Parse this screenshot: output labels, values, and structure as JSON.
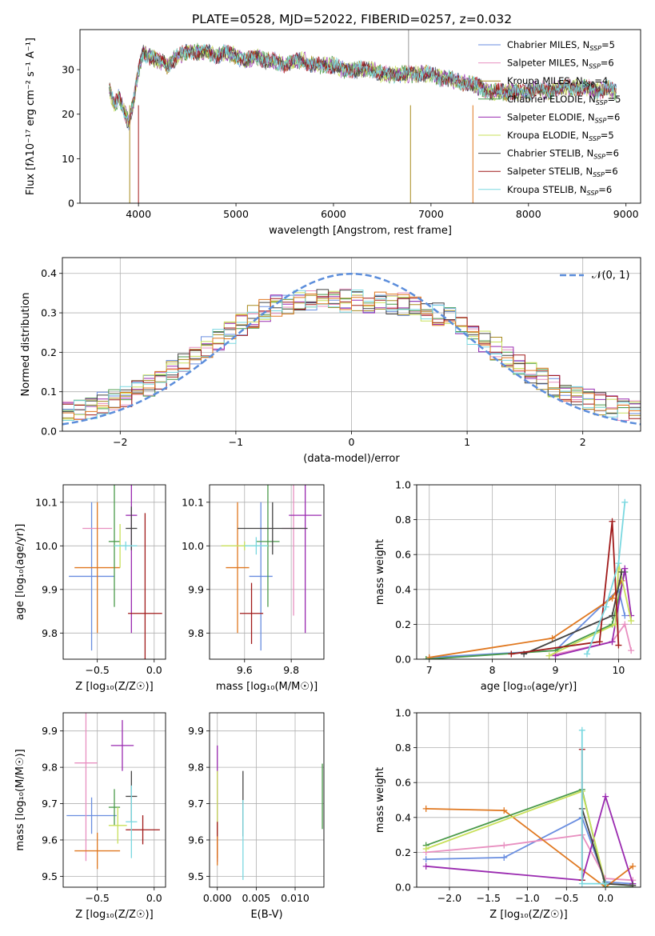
{
  "title": "PLATE=0528, MJD=52022, FIBERID=0257, z=0.032",
  "colors": {
    "chabrier_miles": "#6a8ee0",
    "salpeter_miles": "#e88fc0",
    "kroupa_miles": "#a88b1e",
    "chabrier_elodie": "#4a9a4a",
    "salpeter_elodie": "#9a2ab0",
    "kroupa_elodie": "#c8e05a",
    "chabrier_stelib": "#444444",
    "salpeter_stelib": "#a01a1a",
    "kroupa_stelib": "#7ad8e0",
    "gaussian": "#5b8ddb",
    "extra_orange": "#e07820"
  },
  "chart_data": [
    {
      "type": "line",
      "xlabel": "wavelength [Angstrom, rest frame]",
      "ylabel": "Flux [fλ10⁻¹⁷ erg cm⁻² s⁻¹ A⁻¹]",
      "xlim": [
        3400,
        9150
      ],
      "ylim": [
        0,
        39
      ],
      "xticks": [
        "4000",
        "5000",
        "6000",
        "7000",
        "8000",
        "9000"
      ],
      "yticks": [
        "0",
        "10",
        "20",
        "30"
      ],
      "legend_placement": "top-right",
      "legend": [
        {
          "label": "Chabrier MILES, N",
          "sub": "SSP",
          "val": "=5",
          "color_key": "chabrier_miles"
        },
        {
          "label": "Salpeter MILES, N",
          "sub": "SSP",
          "val": "=6",
          "color_key": "salpeter_miles"
        },
        {
          "label": "Kroupa MILES, N",
          "sub": "SSP",
          "val": "=4",
          "color_key": "kroupa_miles"
        },
        {
          "label": "Chabrier ELODIE, N",
          "sub": "SSP",
          "val": "=5",
          "color_key": "chabrier_elodie"
        },
        {
          "label": "Salpeter ELODIE, N",
          "sub": "SSP",
          "val": "=6",
          "color_key": "salpeter_elodie"
        },
        {
          "label": "Kroupa ELODIE, N",
          "sub": "SSP",
          "val": "=5",
          "color_key": "kroupa_elodie"
        },
        {
          "label": "Chabrier STELIB, N",
          "sub": "SSP",
          "val": "=6",
          "color_key": "chabrier_stelib"
        },
        {
          "label": "Salpeter STELIB, N",
          "sub": "SSP",
          "val": "=6",
          "color_key": "salpeter_stelib"
        },
        {
          "label": "Kroupa STELIB, N",
          "sub": "SSP",
          "val": "=6",
          "color_key": "kroupa_stelib"
        }
      ],
      "spectrum": {
        "x": [
          3700,
          3750,
          3800,
          3850,
          3900,
          3950,
          4000,
          4050,
          4100,
          4200,
          4300,
          4400,
          4500,
          4600,
          4700,
          4800,
          4900,
          5000,
          5100,
          5200,
          5300,
          5400,
          5500,
          5600,
          5700,
          5800,
          5900,
          6000,
          6100,
          6200,
          6300,
          6400,
          6500,
          6600,
          6700,
          6800,
          6900,
          7000,
          7100,
          7200,
          7300,
          7400,
          7500,
          7600,
          7700,
          7800,
          7900,
          8000,
          8100,
          8200,
          8300,
          8400,
          8500,
          8600,
          8700,
          8800,
          8900
        ],
        "y": [
          26,
          22,
          24,
          21,
          18,
          23,
          30,
          34,
          33,
          32,
          31,
          33,
          34,
          34,
          34,
          33,
          34,
          33,
          32,
          33,
          32,
          32,
          31,
          32,
          32,
          31,
          31,
          31,
          30,
          30,
          30,
          30,
          29,
          29,
          29,
          29,
          29,
          29,
          28,
          28,
          27,
          27,
          26,
          25,
          25,
          25,
          25,
          25,
          26,
          25,
          26,
          26,
          26,
          26,
          25,
          26,
          25
        ]
      }
    },
    {
      "type": "bar",
      "xlabel": "(data-model)/error",
      "ylabel": "Normed distribution",
      "xlim": [
        -2.5,
        2.5
      ],
      "ylim": [
        0,
        0.44
      ],
      "xticks": [
        "−2",
        "−1",
        "0",
        "1",
        "2"
      ],
      "yticks": [
        "0.0",
        "0.1",
        "0.2",
        "0.3",
        "0.4"
      ],
      "legend_label": "𝒩(0, 1)",
      "legend_placement": "top-right",
      "bin_width": 0.1
    },
    {
      "type": "scatter",
      "xlabel": "Z [log₁₀(Z/Z☉)]",
      "ylabel": "age  [log₁₀(age/yr)]",
      "xlim": [
        -0.8,
        0.1
      ],
      "ylim": [
        9.74,
        10.14
      ],
      "xticks": [
        "−0.5",
        "0.0"
      ],
      "yticks": [
        "9.8",
        "9.9",
        "10.0",
        "10.1"
      ],
      "points": [
        {
          "x": -0.55,
          "y": 9.93,
          "xerr": 0.2,
          "yerr": 0.17,
          "c": "chabrier_miles"
        },
        {
          "x": -0.5,
          "y": 10.04,
          "xerr": 0.13,
          "yerr": 0.0,
          "c": "salpeter_miles"
        },
        {
          "x": -0.5,
          "y": 9.95,
          "xerr": 0.2,
          "yerr": 0.15,
          "c": "extra_orange"
        },
        {
          "x": -0.35,
          "y": 10.01,
          "xerr": 0.05,
          "yerr": 0.15,
          "c": "chabrier_elodie"
        },
        {
          "x": -0.2,
          "y": 10.07,
          "xerr": 0.05,
          "yerr": 0.27,
          "c": "salpeter_elodie"
        },
        {
          "x": -0.3,
          "y": 10.0,
          "xerr": 0.05,
          "yerr": 0.05,
          "c": "kroupa_elodie"
        },
        {
          "x": -0.2,
          "y": 10.04,
          "xerr": 0.05,
          "yerr": 0.05,
          "c": "chabrier_stelib"
        },
        {
          "x": -0.08,
          "y": 9.845,
          "xerr": 0.15,
          "yerr": 0.23,
          "c": "salpeter_stelib"
        },
        {
          "x": -0.25,
          "y": 10.0,
          "xerr": 0.1,
          "yerr": 0.01,
          "c": "kroupa_stelib"
        }
      ]
    },
    {
      "type": "scatter",
      "xlabel": "mass [log₁₀(M/M☉)]",
      "ylabel": "",
      "xlim": [
        9.45,
        9.94
      ],
      "ylim": [
        9.74,
        10.14
      ],
      "xticks": [
        "9.6",
        "9.8"
      ],
      "yticks": [
        "9.8",
        "9.9",
        "10.0",
        "10.1"
      ],
      "points": [
        {
          "x": 9.67,
          "y": 9.93,
          "xerr": 0.05,
          "yerr": 0.17,
          "c": "chabrier_miles"
        },
        {
          "x": 9.81,
          "y": 10.04,
          "xerr": 0.05,
          "yerr": 0.2,
          "c": "salpeter_miles"
        },
        {
          "x": 9.57,
          "y": 9.95,
          "xerr": 0.05,
          "yerr": 0.15,
          "c": "extra_orange"
        },
        {
          "x": 9.7,
          "y": 10.01,
          "xerr": 0.05,
          "yerr": 0.15,
          "c": "chabrier_elodie"
        },
        {
          "x": 9.86,
          "y": 10.07,
          "xerr": 0.07,
          "yerr": 0.27,
          "c": "salpeter_elodie"
        },
        {
          "x": 9.6,
          "y": 10.0,
          "xerr": 0.1,
          "yerr": 0.01,
          "c": "kroupa_elodie"
        },
        {
          "x": 9.72,
          "y": 10.04,
          "xerr": 0.15,
          "yerr": 0.06,
          "c": "chabrier_stelib"
        },
        {
          "x": 9.63,
          "y": 9.845,
          "xerr": 0.05,
          "yerr": 0.07,
          "c": "salpeter_stelib"
        },
        {
          "x": 9.65,
          "y": 10.0,
          "xerr": 0.05,
          "yerr": 0.02,
          "c": "kroupa_stelib"
        }
      ]
    },
    {
      "type": "line",
      "xlabel": "age  [log₁₀(age/yr)]",
      "ylabel": "mass weight",
      "xlim": [
        6.8,
        10.35
      ],
      "ylim": [
        0,
        1
      ],
      "xticks": [
        "7",
        "8",
        "9",
        "10"
      ],
      "yticks": [
        "0.0",
        "0.2",
        "0.4",
        "0.6",
        "0.8",
        "1.0"
      ],
      "series": [
        {
          "c": "chabrier_miles",
          "x": [
            7.0,
            9.0,
            10.0,
            10.1
          ],
          "y": [
            0.01,
            0.05,
            0.4,
            0.25
          ]
        },
        {
          "c": "salpeter_miles",
          "x": [
            8.9,
            9.9,
            10.1,
            10.2
          ],
          "y": [
            0.02,
            0.1,
            0.2,
            0.05
          ]
        },
        {
          "c": "extra_orange",
          "x": [
            7.0,
            8.95,
            9.9,
            10.05
          ],
          "y": [
            0.01,
            0.12,
            0.35,
            0.45
          ]
        },
        {
          "c": "chabrier_elodie",
          "x": [
            6.95,
            9.0,
            9.9,
            10.1
          ],
          "y": [
            0.0,
            0.05,
            0.2,
            0.5
          ]
        },
        {
          "c": "salpeter_elodie",
          "x": [
            9.0,
            9.9,
            10.1,
            10.2
          ],
          "y": [
            0.02,
            0.1,
            0.52,
            0.25
          ]
        },
        {
          "c": "kroupa_elodie",
          "x": [
            8.9,
            9.95,
            10.0,
            10.2
          ],
          "y": [
            0.02,
            0.2,
            0.55,
            0.22
          ]
        },
        {
          "c": "chabrier_stelib",
          "x": [
            8.5,
            9.9,
            10.05
          ],
          "y": [
            0.03,
            0.25,
            0.5
          ]
        },
        {
          "c": "salpeter_stelib",
          "x": [
            8.3,
            9.7,
            9.9,
            10.0
          ],
          "y": [
            0.03,
            0.1,
            0.79,
            0.08
          ]
        },
        {
          "c": "kroupa_stelib",
          "x": [
            9.5,
            9.8,
            10.0,
            10.1
          ],
          "y": [
            0.03,
            0.3,
            0.55,
            0.9
          ]
        }
      ]
    },
    {
      "type": "scatter",
      "xlabel": "Z [log₁₀(Z/Z☉)]",
      "ylabel": "mass [log₁₀(M/M☉)]",
      "xlim": [
        -0.8,
        0.1
      ],
      "ylim": [
        9.47,
        9.95
      ],
      "xticks": [
        "−0.5",
        "0.0"
      ],
      "yticks": [
        "9.5",
        "9.6",
        "9.7",
        "9.8",
        "9.9"
      ],
      "points": [
        {
          "x": -0.55,
          "y": 9.667,
          "xerr": 0.22,
          "yerr": 0.05,
          "c": "chabrier_miles"
        },
        {
          "x": -0.6,
          "y": 9.812,
          "xerr": 0.1,
          "yerr": 0.27,
          "c": "salpeter_miles"
        },
        {
          "x": -0.5,
          "y": 9.57,
          "xerr": 0.2,
          "yerr": 0.05,
          "c": "extra_orange"
        },
        {
          "x": -0.35,
          "y": 9.69,
          "xerr": 0.05,
          "yerr": 0.05,
          "c": "chabrier_elodie"
        },
        {
          "x": -0.28,
          "y": 9.86,
          "xerr": 0.1,
          "yerr": 0.07,
          "c": "salpeter_elodie"
        },
        {
          "x": -0.32,
          "y": 9.64,
          "xerr": 0.08,
          "yerr": 0.05,
          "c": "kroupa_elodie"
        },
        {
          "x": -0.2,
          "y": 9.72,
          "xerr": 0.05,
          "yerr": 0.07,
          "c": "chabrier_stelib"
        },
        {
          "x": -0.1,
          "y": 9.628,
          "xerr": 0.15,
          "yerr": 0.04,
          "c": "salpeter_stelib"
        },
        {
          "x": -0.2,
          "y": 9.65,
          "xerr": 0.05,
          "yerr": 0.1,
          "c": "kroupa_stelib"
        }
      ]
    },
    {
      "type": "scatter",
      "xlabel": "E(B-V)",
      "ylabel": "",
      "xlim": [
        -0.001,
        0.0137
      ],
      "ylim": [
        9.47,
        9.95
      ],
      "xticks": [
        "0.000",
        "0.005",
        "0.010"
      ],
      "yticks": [
        "9.5",
        "9.6",
        "9.7",
        "9.8",
        "9.9"
      ],
      "points": [
        {
          "x": 0.0,
          "y": 9.7,
          "yerr": 0.16,
          "c": "salpeter_elodie"
        },
        {
          "x": 0.0,
          "y": 9.67,
          "yerr": 0.12,
          "c": "kroupa_elodie"
        },
        {
          "x": 0.0,
          "y": 9.6,
          "yerr": 0.05,
          "c": "salpeter_stelib"
        },
        {
          "x": 0.0,
          "y": 9.57,
          "yerr": 0.04,
          "c": "extra_orange"
        },
        {
          "x": 0.0033,
          "y": 9.7,
          "yerr": 0.09,
          "c": "chabrier_stelib"
        },
        {
          "x": 0.0033,
          "y": 9.6,
          "yerr": 0.11,
          "c": "kroupa_stelib"
        },
        {
          "x": 0.0135,
          "y": 9.72,
          "yerr": 0.09,
          "c": "chabrier_elodie"
        }
      ]
    },
    {
      "type": "line",
      "xlabel": "Z [log₁₀(Z/Z☉)]",
      "ylabel": "mass weight",
      "xlim": [
        -2.42,
        0.45
      ],
      "ylim": [
        0,
        1
      ],
      "xticks": [
        "−2.0",
        "−1.5",
        "−1.0",
        "−0.5",
        "0.0"
      ],
      "yticks": [
        "0.0",
        "0.2",
        "0.4",
        "0.6",
        "0.8",
        "1.0"
      ],
      "series": [
        {
          "c": "chabrier_miles",
          "x": [
            -2.3,
            -1.3,
            -0.3,
            0.0,
            0.35
          ],
          "y": [
            0.16,
            0.17,
            0.4,
            0.03,
            0.02
          ]
        },
        {
          "c": "salpeter_miles",
          "x": [
            -2.3,
            -1.3,
            -0.3,
            0.0,
            0.35
          ],
          "y": [
            0.2,
            0.24,
            0.3,
            0.05,
            0.04
          ]
        },
        {
          "c": "extra_orange",
          "x": [
            -2.3,
            -1.3,
            -0.3,
            0.0,
            0.35
          ],
          "y": [
            0.45,
            0.44,
            0.1,
            0.0,
            0.12
          ]
        },
        {
          "c": "chabrier_elodie",
          "x": [
            -2.3,
            -0.3,
            0.0,
            0.35
          ],
          "y": [
            0.24,
            0.56,
            0.0,
            0.0
          ]
        },
        {
          "c": "salpeter_elodie",
          "x": [
            -2.3,
            -0.3,
            0.0,
            0.35
          ],
          "y": [
            0.12,
            0.04,
            0.52,
            0.02
          ]
        },
        {
          "c": "kroupa_elodie",
          "x": [
            -2.3,
            -0.3,
            0.0,
            0.35
          ],
          "y": [
            0.22,
            0.55,
            0.02,
            0.01
          ]
        },
        {
          "c": "chabrier_stelib",
          "x": [
            -0.3,
            0.0,
            0.35
          ],
          "y": [
            0.45,
            0.02,
            0.01
          ]
        },
        {
          "c": "salpeter_stelib",
          "x": [
            -0.3,
            -0.3
          ],
          "y": [
            0.79,
            0.04
          ]
        },
        {
          "c": "kroupa_stelib",
          "x": [
            -0.3,
            -0.3,
            0.0
          ],
          "y": [
            0.9,
            0.02,
            0.02
          ]
        }
      ]
    }
  ]
}
